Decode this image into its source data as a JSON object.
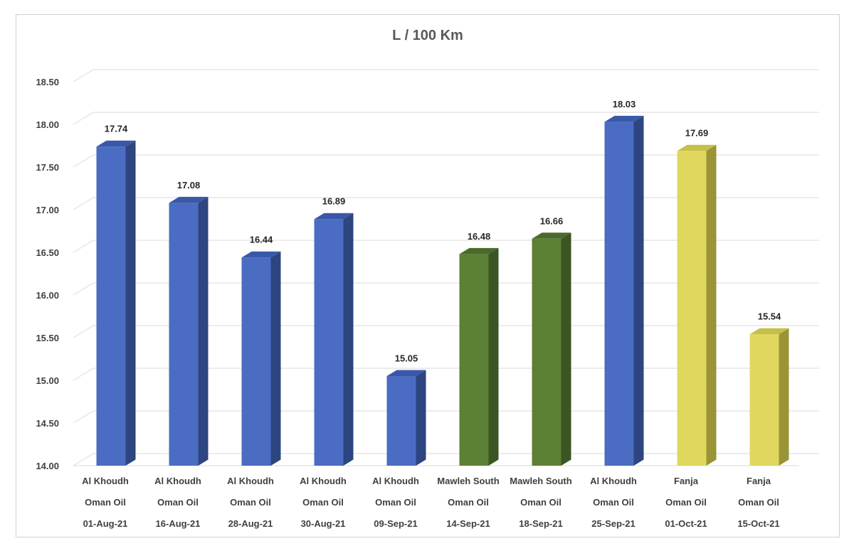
{
  "chart_data": {
    "type": "bar",
    "title": "L / 100 Km",
    "xlabel": "",
    "ylabel": "",
    "ylim": [
      14.0,
      18.5
    ],
    "ytick_step": 0.5,
    "yticks": [
      "14.00",
      "14.50",
      "15.00",
      "15.50",
      "16.00",
      "16.50",
      "17.00",
      "17.50",
      "18.00",
      "18.50"
    ],
    "grid": true,
    "style": "3d-column",
    "categories": [
      [
        "Al Khoudh",
        "Oman Oil",
        "01-Aug-21"
      ],
      [
        "Al Khoudh",
        "Oman Oil",
        "16-Aug-21"
      ],
      [
        "Al Khoudh",
        "Oman Oil",
        "28-Aug-21"
      ],
      [
        "Al Khoudh",
        "Oman Oil",
        "30-Aug-21"
      ],
      [
        "Al Khoudh",
        "Oman Oil",
        "09-Sep-21"
      ],
      [
        "Mawleh South",
        "Oman Oil",
        "14-Sep-21"
      ],
      [
        "Mawleh South",
        "Oman Oil",
        "18-Sep-21"
      ],
      [
        "Al Khoudh",
        "Oman Oil",
        "25-Sep-21"
      ],
      [
        "Fanja",
        "Oman Oil",
        "01-Oct-21"
      ],
      [
        "Fanja",
        "Oman Oil",
        "15-Oct-21"
      ]
    ],
    "values": [
      17.74,
      17.08,
      16.44,
      16.89,
      15.05,
      16.48,
      16.66,
      18.03,
      17.69,
      15.54
    ],
    "value_labels": [
      "17.74",
      "17.08",
      "16.44",
      "16.89",
      "15.05",
      "16.48",
      "16.66",
      "18.03",
      "17.69",
      "15.54"
    ],
    "bar_colors": [
      "#4a6cc2",
      "#4a6cc2",
      "#4a6cc2",
      "#4a6cc2",
      "#4a6cc2",
      "#5b8036",
      "#5b8036",
      "#4a6cc2",
      "#e0d85e",
      "#e0d85e"
    ],
    "bar_side_colors": [
      "#2d4580",
      "#2d4580",
      "#2d4580",
      "#2d4580",
      "#2d4580",
      "#3b5524",
      "#3b5524",
      "#2d4580",
      "#9a9436",
      "#9a9436"
    ],
    "bar_top_colors": [
      "#3a58a8",
      "#3a58a8",
      "#3a58a8",
      "#3a58a8",
      "#3a58a8",
      "#4a6a2c",
      "#4a6a2c",
      "#3a58a8",
      "#c6bf48",
      "#c6bf48"
    ]
  }
}
